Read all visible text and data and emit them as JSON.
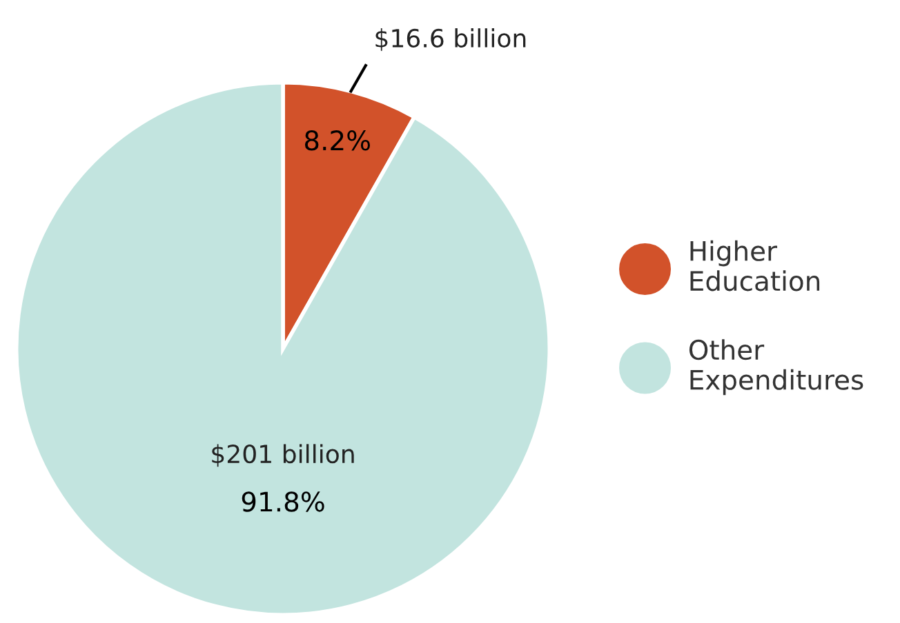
{
  "chart_data": {
    "type": "pie",
    "categories": [
      "Higher Education",
      "Other Expenditures"
    ],
    "values": [
      8.2,
      91.8
    ],
    "colors": [
      "#d2522a",
      "#c2e4df"
    ],
    "value_labels": [
      "8.2%",
      "91.8%"
    ],
    "annotations": [
      {
        "text": "$16.6 billion",
        "x": "Higher Education"
      },
      {
        "text": "$201 billion",
        "x": "Other Expenditures"
      }
    ],
    "legend": "right"
  }
}
